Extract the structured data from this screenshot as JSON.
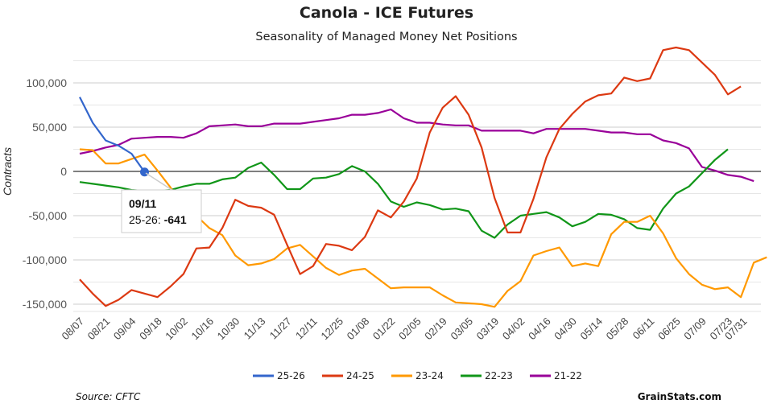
{
  "chart_data": {
    "type": "line",
    "title": "Canola - ICE Futures",
    "subtitle": "Seasonality of Managed Money Net Positions",
    "xlabel": "",
    "ylabel": "Contracts",
    "ylim": [
      -160000,
      135000
    ],
    "yticks": [
      100000,
      50000,
      0,
      -50000,
      -100000,
      -150000
    ],
    "ytick_labels": [
      "100,000",
      "50,000",
      "0",
      "-50,000",
      "-100,000",
      "-150,000"
    ],
    "minor_grid_step": 25000,
    "grid": true,
    "legend_position": "bottom",
    "x_tick_labels": [
      "08/07",
      "08/21",
      "09/04",
      "09/18",
      "10/02",
      "10/16",
      "10/30",
      "11/13",
      "11/27",
      "12/11",
      "12/25",
      "01/08",
      "01/22",
      "02/05",
      "02/19",
      "03/05",
      "03/19",
      "04/02",
      "04/16",
      "04/30",
      "05/14",
      "05/28",
      "06/11",
      "06/25",
      "07/09",
      "07/23",
      "07/31"
    ],
    "x_start_week_label": "08/07",
    "series": [
      {
        "name": "25-26",
        "color": "#3366cc",
        "values": [
          84000,
          55000,
          35000,
          29000,
          20000,
          -641
        ]
      },
      {
        "name": "24-25",
        "color": "#dc3912",
        "values": [
          -122000,
          -138000,
          -152000,
          -145000,
          -134000,
          -138000,
          -142000,
          -130000,
          -116000,
          -87000,
          -86000,
          -64000,
          -32000,
          -39000,
          -41000,
          -49000,
          -83000,
          -116000,
          -107000,
          -82000,
          -84000,
          -89000,
          -74000,
          -44000,
          -52000,
          -34000,
          -8000,
          44000,
          72000,
          85000,
          64000,
          27000,
          -30000,
          -69000,
          -69000,
          -31000,
          16000,
          48000,
          65000,
          79000,
          86000,
          88000,
          106000,
          102000,
          105000,
          137000,
          140000,
          137000,
          123000,
          109000,
          87000,
          96000
        ]
      },
      {
        "name": "23-24",
        "color": "#ff9900",
        "values": [
          25000,
          24000,
          9000,
          9000,
          14000,
          19000,
          1000,
          -18000,
          -42000,
          -50000,
          -64000,
          -72000,
          -95000,
          -106000,
          -104000,
          -99000,
          -87000,
          -83000,
          -96000,
          -109000,
          -117000,
          -112000,
          -110000,
          -121000,
          -132000,
          -131000,
          -131000,
          -131000,
          -140000,
          -148000,
          -149000,
          -150000,
          -153000,
          -135000,
          -124000,
          -95000,
          -90000,
          -86000,
          -107000,
          -104000,
          -107000,
          -71000,
          -57000,
          -57000,
          -50000,
          -70000,
          -98000,
          -116000,
          -128000,
          -133000,
          -131000,
          -142000,
          -103000,
          -97000
        ]
      },
      {
        "name": "22-23",
        "color": "#109618",
        "values": [
          -12000,
          -14000,
          -16000,
          -18000,
          -21000,
          -22000,
          -22000,
          -21000,
          -17000,
          -14000,
          -14000,
          -9000,
          -7000,
          4000,
          10000,
          -4000,
          -20000,
          -20000,
          -8000,
          -7000,
          -3000,
          6000,
          0,
          -14000,
          -34000,
          -40000,
          -35000,
          -38000,
          -43000,
          -42000,
          -45000,
          -67000,
          -75000,
          -60000,
          -50000,
          -48000,
          -46000,
          -52000,
          -62000,
          -57000,
          -48000,
          -49000,
          -54000,
          -64000,
          -66000,
          -42000,
          -25000,
          -17000,
          -2000,
          13000,
          25000
        ]
      },
      {
        "name": "21-22",
        "color": "#990099",
        "values": [
          20000,
          23000,
          27000,
          30000,
          37000,
          38000,
          39000,
          39000,
          38000,
          43000,
          51000,
          52000,
          53000,
          51000,
          51000,
          54000,
          54000,
          54000,
          56000,
          58000,
          60000,
          64000,
          64000,
          66000,
          70000,
          60000,
          55000,
          55000,
          53000,
          52000,
          52000,
          46000,
          46000,
          46000,
          46000,
          43000,
          48000,
          48000,
          48000,
          48000,
          46000,
          44000,
          44000,
          42000,
          42000,
          35000,
          32000,
          26000,
          5000,
          1000,
          -4000,
          -6000,
          -11000
        ]
      }
    ],
    "tooltip": {
      "date": "09/11",
      "series": "25-26",
      "value_label": "-641",
      "point_index": 5
    },
    "source": "Source: CFTC",
    "brand": "GrainStats.com"
  }
}
